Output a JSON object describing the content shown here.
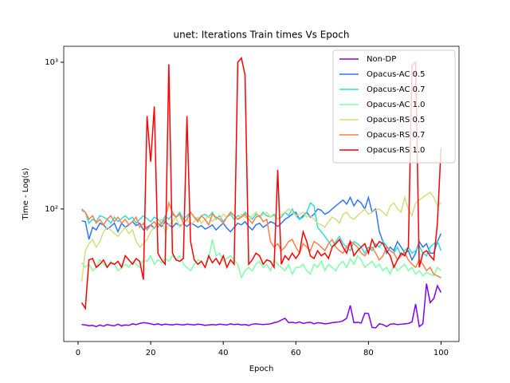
{
  "chart_data": {
    "type": "line",
    "title": "unet: Iterations Train times Vs Epoch",
    "x_label": "Epoch",
    "y_label": "Time - Log(s)",
    "log_y": true,
    "legend": "upper right",
    "xlim": [
      -3.95,
      104.95
    ],
    "xticks": [
      0,
      20,
      40,
      60,
      80,
      100
    ],
    "ylim": [
      12.5,
      1285
    ],
    "yticks": [
      {
        "value": 100,
        "label": "10²"
      },
      {
        "value": 1000,
        "label": "10³"
      }
    ],
    "x": [
      1,
      2,
      3,
      4,
      5,
      6,
      7,
      8,
      9,
      10,
      11,
      12,
      13,
      14,
      15,
      16,
      17,
      18,
      19,
      20,
      21,
      22,
      23,
      24,
      25,
      26,
      27,
      28,
      29,
      30,
      31,
      32,
      33,
      34,
      35,
      36,
      37,
      38,
      39,
      40,
      41,
      42,
      43,
      44,
      45,
      46,
      47,
      48,
      49,
      50,
      51,
      52,
      53,
      54,
      55,
      56,
      57,
      58,
      59,
      60,
      61,
      62,
      63,
      64,
      65,
      66,
      67,
      68,
      69,
      70,
      71,
      72,
      73,
      74,
      75,
      76,
      77,
      78,
      79,
      80,
      81,
      82,
      83,
      84,
      85,
      86,
      87,
      88,
      89,
      90,
      91,
      92,
      93,
      94,
      95,
      96,
      97,
      98,
      99,
      100
    ],
    "series": [
      {
        "name": "Non-DP",
        "color": "#8000ff",
        "values": [
          16.3,
          16.2,
          16.0,
          16.1,
          15.8,
          16.2,
          15.9,
          16.3,
          16.1,
          16.0,
          16.4,
          16.0,
          16.2,
          16.1,
          16.5,
          16.3,
          16.6,
          16.8,
          16.7,
          16.5,
          16.3,
          16.5,
          16.2,
          16.4,
          16.3,
          16.2,
          16.4,
          16.3,
          16.2,
          16.4,
          16.3,
          16.2,
          16.4,
          16.3,
          16.1,
          16.2,
          16.3,
          16.2,
          16.4,
          16.3,
          16.2,
          16.5,
          16.3,
          16.4,
          16.2,
          16.3,
          16.1,
          16.4,
          16.5,
          16.4,
          16.3,
          16.4,
          16.5,
          16.8,
          17.0,
          17.5,
          18.0,
          16.8,
          16.9,
          16.7,
          17.0,
          16.6,
          16.8,
          16.9,
          16.5,
          16.8,
          16.7,
          16.5,
          16.6,
          16.8,
          16.9,
          17.0,
          17.3,
          18.0,
          22.0,
          16.8,
          16.9,
          16.7,
          19.5,
          19.4,
          15.6,
          15.5,
          16.5,
          16.3,
          15.8,
          16.4,
          16.5,
          16.3,
          16.4,
          16.5,
          16.6,
          17.0,
          22.5,
          15.8,
          16.5,
          31.0,
          23.0,
          24.5,
          30.0,
          27.0
        ]
      },
      {
        "name": "Opacus-AC 0.5",
        "color": "#3176f8",
        "values": [
          83,
          82,
          62,
          75,
          72,
          80,
          78,
          73,
          76,
          80,
          70,
          80,
          75,
          78,
          82,
          77,
          80,
          72,
          75,
          78,
          74,
          80,
          76,
          82,
          78,
          75,
          80,
          77,
          79,
          76,
          80,
          78,
          75,
          77,
          73,
          75,
          78,
          72,
          76,
          80,
          74,
          70,
          75,
          80,
          78,
          82,
          76,
          72,
          78,
          80,
          75,
          78,
          82,
          80,
          76,
          80,
          85,
          88,
          92,
          95,
          85,
          90,
          95,
          88,
          92,
          100,
          98,
          92,
          95,
          100,
          105,
          110,
          115,
          108,
          120,
          105,
          115,
          110,
          100,
          120,
          95,
          100,
          70,
          60,
          50,
          55,
          52,
          60,
          55,
          50,
          52,
          45,
          50,
          60,
          55,
          58,
          50,
          50,
          60,
          68
        ]
      },
      {
        "name": "Opacus-AC 0.7",
        "color": "#2adddd",
        "values": [
          98,
          95,
          80,
          85,
          82,
          90,
          88,
          85,
          80,
          88,
          82,
          86,
          90,
          85,
          88,
          80,
          85,
          90,
          86,
          82,
          88,
          85,
          80,
          90,
          85,
          92,
          88,
          95,
          85,
          90,
          95,
          88,
          85,
          90,
          92,
          88,
          95,
          85,
          90,
          82,
          88,
          92,
          85,
          90,
          88,
          95,
          90,
          85,
          92,
          88,
          95,
          90,
          88,
          92,
          85,
          88,
          95,
          90,
          100,
          90,
          85,
          88,
          95,
          110,
          105,
          75,
          70,
          65,
          60,
          55,
          60,
          65,
          58,
          55,
          52,
          60,
          58,
          55,
          50,
          55,
          52,
          58,
          55,
          60,
          56,
          52,
          50,
          55,
          48,
          52,
          55,
          50,
          52,
          56,
          50,
          48,
          55,
          58,
          60,
          52
        ]
      },
      {
        "name": "Opacus-AC 1.0",
        "color": "#80ffa8",
        "values": [
          43,
          40,
          42,
          38,
          40,
          45,
          42,
          40,
          44,
          42,
          38,
          40,
          42,
          40,
          44,
          42,
          40,
          45,
          44,
          48,
          42,
          45,
          43,
          46,
          44,
          48,
          45,
          48,
          42,
          40,
          38,
          42,
          45,
          44,
          40,
          46,
          62,
          48,
          50,
          44,
          46,
          48,
          45,
          42,
          34,
          38,
          40,
          38,
          42,
          44,
          40,
          42,
          38,
          45,
          42,
          40,
          38,
          42,
          36,
          40,
          40,
          42,
          38,
          36,
          42,
          40,
          44,
          38,
          42,
          40,
          38,
          42,
          44,
          40,
          46,
          42,
          48,
          45,
          40,
          42,
          44,
          40,
          42,
          38,
          40,
          36,
          42,
          38,
          40,
          42,
          38,
          40,
          36,
          38,
          35,
          37,
          36,
          35,
          40,
          38
        ]
      },
      {
        "name": "Opacus-RS 0.5",
        "color": "#d4dd80",
        "values": [
          32,
          52,
          58,
          62,
          55,
          60,
          70,
          75,
          72,
          68,
          65,
          70,
          75,
          68,
          72,
          60,
          55,
          58,
          62,
          70,
          75,
          80,
          85,
          70,
          78,
          82,
          88,
          75,
          80,
          85,
          78,
          82,
          88,
          80,
          85,
          90,
          82,
          88,
          85,
          92,
          88,
          95,
          90,
          85,
          92,
          88,
          85,
          90,
          95,
          88,
          92,
          95,
          88,
          90,
          85,
          92,
          95,
          100,
          95,
          90,
          92,
          95,
          88,
          90,
          85,
          80,
          78,
          75,
          82,
          88,
          85,
          80,
          92,
          95,
          88,
          85,
          90,
          95,
          100,
          92,
          95,
          98,
          100,
          95,
          90,
          105,
          110,
          100,
          95,
          120,
          100,
          90,
          110,
          115,
          120,
          125,
          130,
          120,
          105,
          110
        ]
      },
      {
        "name": "Opacus-RS 0.7",
        "color": "#ff7f48",
        "values": [
          100,
          95,
          85,
          90,
          80,
          85,
          78,
          85,
          90,
          82,
          88,
          80,
          85,
          78,
          82,
          88,
          75,
          80,
          72,
          78,
          82,
          75,
          80,
          85,
          110,
          95,
          88,
          92,
          80,
          85,
          95,
          88,
          82,
          90,
          85,
          78,
          92,
          88,
          85,
          80,
          88,
          95,
          90,
          85,
          88,
          92,
          85,
          80,
          88,
          90,
          82,
          85,
          60,
          55,
          58,
          52,
          55,
          60,
          62,
          55,
          50,
          58,
          55,
          52,
          60,
          58,
          55,
          52,
          58,
          62,
          55,
          52,
          50,
          55,
          60,
          58,
          55,
          50,
          48,
          52,
          55,
          50,
          45,
          48,
          55,
          52,
          50,
          45,
          48,
          50,
          45,
          42,
          40,
          45,
          42,
          38,
          40,
          36,
          35,
          34
        ]
      },
      {
        "name": "Opacus-RS 1.0",
        "color": "#ff0000",
        "values": [
          23,
          21,
          45,
          46,
          40,
          42,
          45,
          40,
          43,
          42,
          44,
          40,
          48,
          45,
          42,
          46,
          44,
          33,
          430,
          210,
          500,
          50,
          45,
          42,
          970,
          50,
          45,
          44,
          46,
          430,
          60,
          45,
          42,
          44,
          40,
          48,
          43,
          46,
          42,
          48,
          40,
          45,
          42,
          1000,
          1070,
          820,
          42,
          45,
          50,
          48,
          42,
          45,
          44,
          40,
          185,
          42,
          48,
          45,
          50,
          46,
          50,
          70,
          60,
          48,
          46,
          52,
          48,
          50,
          46,
          55,
          58,
          62,
          55,
          50,
          60,
          48,
          52,
          55,
          58,
          50,
          62,
          55,
          60,
          58,
          52,
          48,
          40,
          45,
          50,
          48,
          55,
          950,
          1000,
          40,
          50,
          52,
          48,
          45,
          80,
          260
        ]
      }
    ]
  }
}
